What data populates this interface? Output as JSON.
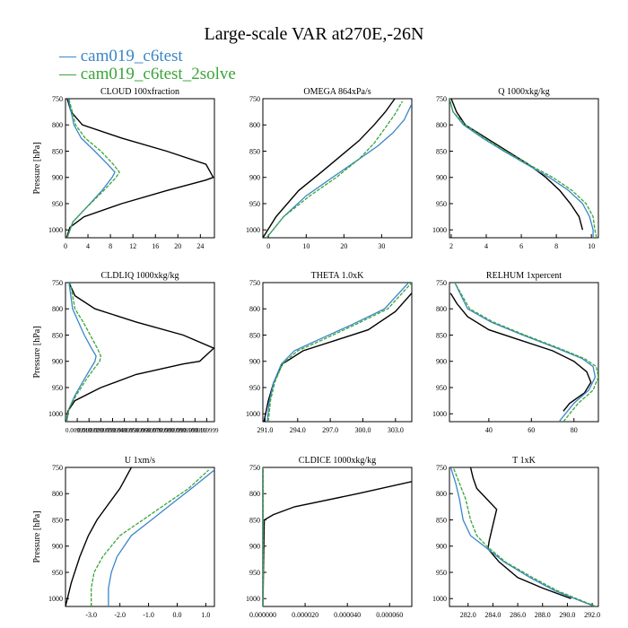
{
  "title": "Large-scale VAR at270E,-26N",
  "legend": [
    {
      "label": "— cam019_c6test",
      "color": "#3a86c8"
    },
    {
      "label": "— cam019_c6test_2solve",
      "color": "#3aa53a"
    }
  ],
  "chart_data": [
    {
      "type": "line",
      "title": "CLOUD 100xfraction",
      "xlabel": "",
      "ylabel": "Pressure [hPa]",
      "xlim": [
        0,
        26.5
      ],
      "ylim": [
        1015,
        750
      ],
      "xticks": [
        0,
        4,
        8,
        12,
        16,
        20,
        24
      ],
      "xtick_labels": [
        "0",
        "4",
        "8",
        "12",
        "16",
        "20",
        "24"
      ],
      "yticks": [
        750,
        800,
        850,
        900,
        950,
        1000
      ],
      "ytick_labels": [
        "750",
        "800",
        "850",
        "900",
        "950",
        "1000"
      ],
      "series": [
        {
          "color": "#000000",
          "x": [
            0.2,
            0.8,
            3.3,
            10,
            18,
            25,
            26.3,
            25,
            18,
            10,
            3,
            1,
            0.3
          ],
          "y": [
            1015,
            995,
            975,
            950,
            925,
            905,
            900,
            875,
            850,
            825,
            800,
            775,
            750
          ]
        },
        {
          "color": "#3a86c8",
          "x": [
            0.3,
            1.3,
            3.5,
            6.5,
            8.3,
            8.8,
            7.5,
            5.2,
            2.8,
            1.5,
            0.5
          ],
          "y": [
            1015,
            985,
            960,
            925,
            900,
            890,
            875,
            850,
            825,
            800,
            750
          ]
        },
        {
          "color": "#3aa53a",
          "x": [
            0.3,
            1.3,
            3.5,
            6.8,
            9,
            9.6,
            8.5,
            6.3,
            3.5,
            1.8,
            0.6
          ],
          "y": [
            1015,
            985,
            960,
            925,
            900,
            890,
            875,
            850,
            825,
            800,
            750
          ]
        }
      ]
    },
    {
      "type": "line",
      "title": "OMEGA 864xPa/s",
      "xlabel": "",
      "ylabel": "",
      "xlim": [
        -1.5,
        38
      ],
      "ylim": [
        1015,
        750
      ],
      "xticks": [
        0,
        10,
        20,
        30
      ],
      "xtick_labels": [
        "0",
        "10",
        "20",
        "30"
      ],
      "yticks": [
        750,
        800,
        850,
        900,
        950,
        1000
      ],
      "ytick_labels": [
        "750",
        "800",
        "850",
        "900",
        "950",
        "1000"
      ],
      "series": [
        {
          "color": "#000000",
          "x": [
            -1.5,
            2,
            8,
            14,
            19,
            24,
            28,
            31,
            33.5
          ],
          "y": [
            1015,
            975,
            925,
            890,
            860,
            830,
            800,
            775,
            750
          ]
        },
        {
          "color": "#3a86c8",
          "x": [
            -0.5,
            4,
            10,
            17,
            24,
            29,
            33,
            36,
            38
          ],
          "y": [
            1015,
            975,
            935,
            900,
            865,
            840,
            815,
            790,
            760
          ]
        },
        {
          "color": "#3aa53a",
          "x": [
            -0.5,
            4,
            11,
            18,
            24,
            28,
            31,
            33.5,
            35.5
          ],
          "y": [
            1015,
            975,
            935,
            900,
            865,
            835,
            805,
            780,
            755
          ]
        }
      ]
    },
    {
      "type": "line",
      "title": "Q 1000xkg/kg",
      "xlabel": "",
      "ylabel": "",
      "xlim": [
        1.9,
        10.4
      ],
      "ylim": [
        1015,
        750
      ],
      "xticks": [
        2,
        4,
        6,
        8,
        10
      ],
      "xtick_labels": [
        "2",
        "4",
        "6",
        "8",
        "10"
      ],
      "yticks": [
        750,
        800,
        850,
        900,
        950,
        1000
      ],
      "ytick_labels": [
        "750",
        "800",
        "850",
        "900",
        "950",
        "1000"
      ],
      "series": [
        {
          "color": "#000000",
          "x": [
            9.5,
            9.3,
            8.8,
            8.2,
            7.4,
            6.4,
            5.2,
            4,
            2.8,
            2.3,
            2
          ],
          "y": [
            1000,
            975,
            950,
            925,
            900,
            875,
            850,
            825,
            800,
            775,
            750
          ]
        },
        {
          "color": "#3a86c8",
          "x": [
            10.1,
            10.1,
            9.9,
            9.5,
            8.7,
            7.6,
            6.3,
            5,
            3.8,
            2.7,
            2.1,
            1.9
          ],
          "y": [
            1015,
            1000,
            975,
            950,
            925,
            900,
            875,
            850,
            825,
            800,
            775,
            750
          ]
        },
        {
          "color": "#3aa53a",
          "x": [
            10.3,
            10.2,
            10.1,
            9.7,
            8.9,
            7.8,
            6.4,
            5.1,
            3.9,
            2.8,
            2.1,
            1.9
          ],
          "y": [
            1015,
            1000,
            975,
            950,
            925,
            900,
            875,
            850,
            825,
            800,
            775,
            750
          ]
        }
      ]
    },
    {
      "type": "line",
      "title": "CLDLIQ 1000xkg/kg",
      "xlabel": "",
      "ylabel": "Pressure [hPa]",
      "xlim": [
        0,
        0.1265
      ],
      "ylim": [
        1015,
        750
      ],
      "xticks": [
        0.009999,
        0.019999,
        0.029999,
        0.039999,
        0.049999,
        0.059999,
        0.069999,
        0.079999,
        0.089999,
        0.099999,
        0.109999,
        0.119999
      ],
      "xtick_labels": [
        "0.009999",
        "0.019999",
        "0.029999",
        "0.039999",
        "0.049999",
        "0.059999",
        "0.069999",
        "0.079999",
        "0.089999",
        "0.099999",
        "0.109999",
        "0.119999"
      ],
      "yticks": [
        750,
        800,
        850,
        900,
        950,
        1000
      ],
      "ytick_labels": [
        "750",
        "800",
        "850",
        "900",
        "950",
        "1000"
      ],
      "series": [
        {
          "color": "#000000",
          "x": [
            0.001,
            0.002,
            0.008,
            0.03,
            0.06,
            0.1,
            0.114,
            0.126,
            0.1,
            0.06,
            0.025,
            0.008,
            0.003
          ],
          "y": [
            1015,
            995,
            975,
            950,
            925,
            905,
            900,
            875,
            850,
            825,
            800,
            775,
            750
          ]
        },
        {
          "color": "#3a86c8",
          "x": [
            0.001,
            0.003,
            0.008,
            0.017,
            0.025,
            0.026,
            0.022,
            0.016,
            0.011,
            0.006,
            0.003
          ],
          "y": [
            1015,
            990,
            965,
            930,
            900,
            890,
            875,
            850,
            825,
            800,
            750
          ]
        },
        {
          "color": "#3aa53a",
          "x": [
            0.001,
            0.003,
            0.009,
            0.019,
            0.029,
            0.03,
            0.027,
            0.021,
            0.015,
            0.008,
            0.004
          ],
          "y": [
            1015,
            990,
            965,
            930,
            900,
            890,
            875,
            850,
            825,
            800,
            750
          ]
        }
      ]
    },
    {
      "type": "line",
      "title": "THETA 1.0xK",
      "xlabel": "",
      "ylabel": "",
      "xlim": [
        290.8,
        304.5
      ],
      "ylim": [
        1015,
        750
      ],
      "xticks": [
        291.0,
        294.0,
        297.0,
        300.0,
        303.0
      ],
      "xtick_labels": [
        "291.0",
        "294.0",
        "297.0",
        "300.0",
        "303.0"
      ],
      "yticks": [
        750,
        800,
        850,
        900,
        950,
        1000
      ],
      "ytick_labels": [
        "750",
        "800",
        "850",
        "900",
        "950",
        "1000"
      ],
      "series": [
        {
          "color": "#000000",
          "x": [
            290.9,
            291.3,
            291.8,
            292.6,
            294.5,
            297.5,
            300.5,
            303,
            304.5
          ],
          "y": [
            1015,
            975,
            940,
            905,
            880,
            860,
            840,
            805,
            770
          ]
        },
        {
          "color": "#3a86c8",
          "x": [
            291.2,
            291.4,
            291.8,
            292.5,
            293.7,
            295.8,
            299,
            302,
            304.2
          ],
          "y": [
            1015,
            975,
            940,
            905,
            880,
            860,
            830,
            800,
            750
          ]
        },
        {
          "color": "#3aa53a",
          "x": [
            291.3,
            291.5,
            291.9,
            292.6,
            294,
            296.2,
            299.3,
            302.3,
            304.5
          ],
          "y": [
            1015,
            975,
            940,
            905,
            880,
            860,
            830,
            800,
            750
          ]
        }
      ]
    },
    {
      "type": "line",
      "title": "RELHUM 1xpercent",
      "xlabel": "",
      "ylabel": "",
      "xlim": [
        21.5,
        91.5
      ],
      "ylim": [
        1015,
        750
      ],
      "xticks": [
        40,
        60,
        80
      ],
      "xtick_labels": [
        "40",
        "60",
        "80"
      ],
      "yticks": [
        750,
        800,
        850,
        900,
        950,
        1000
      ],
      "ytick_labels": [
        "750",
        "800",
        "850",
        "900",
        "950",
        "1000"
      ],
      "series": [
        {
          "color": "#000000",
          "x": [
            75,
            78,
            85,
            88,
            86,
            80,
            70,
            55,
            40,
            30,
            25,
            22
          ],
          "y": [
            995,
            980,
            960,
            940,
            920,
            900,
            880,
            860,
            840,
            815,
            790,
            770
          ]
        },
        {
          "color": "#3a86c8",
          "x": [
            73,
            80,
            87,
            90,
            89,
            84,
            72,
            56,
            41,
            30,
            24
          ],
          "y": [
            1015,
            980,
            955,
            930,
            910,
            895,
            875,
            850,
            825,
            800,
            750
          ]
        },
        {
          "color": "#3aa53a",
          "x": [
            75,
            82,
            89,
            91.5,
            90.5,
            85,
            73,
            57,
            42,
            31,
            24
          ],
          "y": [
            1015,
            980,
            955,
            930,
            910,
            895,
            875,
            850,
            825,
            800,
            750
          ]
        }
      ]
    },
    {
      "type": "line",
      "title": "U 1xm/s",
      "xlabel": "",
      "ylabel": "Pressure [hPa]",
      "xlim": [
        -3.9,
        1.3
      ],
      "ylim": [
        1015,
        750
      ],
      "xticks": [
        -3.0,
        -2.0,
        -1.0,
        0.0,
        1.0
      ],
      "xtick_labels": [
        "-3.0",
        "-2.0",
        "-1.0",
        "0.0",
        "1.0"
      ],
      "yticks": [
        750,
        800,
        850,
        900,
        950,
        1000
      ],
      "ytick_labels": [
        "750",
        "800",
        "850",
        "900",
        "950",
        "1000"
      ],
      "series": [
        {
          "color": "#000000",
          "x": [
            -3.9,
            -3.7,
            -3.4,
            -3.1,
            -2.8,
            -2.4,
            -2.0,
            -1.6
          ],
          "y": [
            1015,
            970,
            920,
            880,
            850,
            820,
            790,
            750
          ]
        },
        {
          "color": "#3a86c8",
          "x": [
            -2.4,
            -2.4,
            -2.3,
            -2.1,
            -1.6,
            -0.9,
            -0.2,
            0.5,
            1.3
          ],
          "y": [
            1015,
            980,
            950,
            920,
            880,
            850,
            820,
            790,
            755
          ]
        },
        {
          "color": "#3aa53a",
          "x": [
            -3.0,
            -3.0,
            -2.9,
            -2.6,
            -2.0,
            -1.2,
            -0.4,
            0.4,
            1.1
          ],
          "y": [
            1015,
            980,
            950,
            920,
            880,
            850,
            820,
            790,
            755
          ]
        }
      ]
    },
    {
      "type": "line",
      "title": "CLDICE 1000xkg/kg",
      "xlabel": "",
      "ylabel": "",
      "xlim": [
        0,
        7.05e-05
      ],
      "ylim": [
        1015,
        750
      ],
      "xticks": [
        0.0,
        2e-05,
        4e-05,
        6e-05
      ],
      "xtick_labels": [
        "0.000000",
        "0.000020",
        "0.000040",
        "0.000060"
      ],
      "yticks": [
        750,
        800,
        850,
        900,
        950,
        1000
      ],
      "ytick_labels": [
        "750",
        "800",
        "850",
        "900",
        "950",
        "1000"
      ],
      "series": [
        {
          "color": "#000000",
          "x": [
            0.0,
            7e-07,
            5e-06,
            1.5e-05,
            4.5e-05,
            7.05e-05
          ],
          "y": [
            1015,
            850,
            840,
            825,
            800,
            777
          ]
        },
        {
          "color": "#3a86c8",
          "x": [
            1e-07,
            1e-07
          ],
          "y": [
            1015,
            750
          ]
        },
        {
          "color": "#3aa53a",
          "x": [
            2e-07,
            2e-07
          ],
          "y": [
            1015,
            750
          ]
        }
      ]
    },
    {
      "type": "line",
      "title": "T 1xK",
      "xlabel": "",
      "ylabel": "",
      "xlim": [
        280.5,
        292.5
      ],
      "ylim": [
        1015,
        750
      ],
      "xticks": [
        282,
        284,
        286,
        288,
        290,
        292
      ],
      "xtick_labels": [
        "282.0",
        "284.0",
        "286.0",
        "288.0",
        "290.0",
        "292.0"
      ],
      "yticks": [
        750,
        800,
        850,
        900,
        950,
        1000
      ],
      "ytick_labels": [
        "750",
        "800",
        "850",
        "900",
        "950",
        "1000"
      ],
      "series": [
        {
          "color": "#000000",
          "x": [
            290.3,
            288,
            286,
            284.5,
            283.6,
            283.7,
            284.0,
            284.3,
            283.5,
            282.7,
            282.4,
            282.2
          ],
          "y": [
            1000,
            980,
            960,
            930,
            905,
            890,
            860,
            830,
            810,
            790,
            770,
            750
          ]
        },
        {
          "color": "#3a86c8",
          "x": [
            292.2,
            289,
            287,
            284.9,
            283.3,
            282.2,
            281.6,
            281.3,
            281.0,
            280.6
          ],
          "y": [
            1015,
            985,
            960,
            930,
            900,
            880,
            850,
            810,
            780,
            750
          ]
        },
        {
          "color": "#3aa53a",
          "x": [
            292.3,
            289.2,
            287.2,
            285,
            283.5,
            282.7,
            282.2,
            281.8,
            281.3,
            280.8
          ],
          "y": [
            1015,
            985,
            960,
            930,
            900,
            880,
            850,
            810,
            780,
            750
          ]
        }
      ]
    }
  ]
}
